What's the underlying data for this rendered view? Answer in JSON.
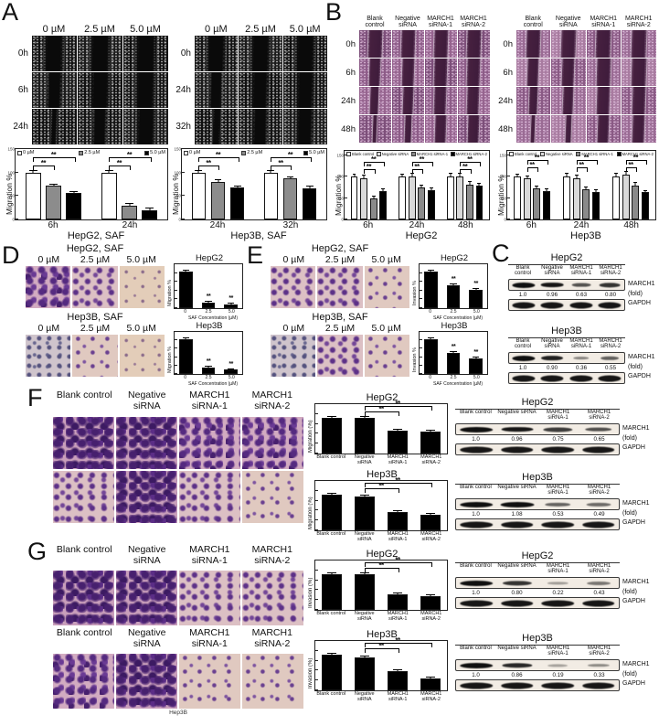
{
  "panels": {
    "A": {
      "label": "A",
      "grids": [
        {
          "cols": [
            "0 µM",
            "2.5 µM",
            "5.0 µM"
          ],
          "rows": [
            "0h",
            "6h",
            "24h"
          ]
        },
        {
          "cols": [
            "0 µM",
            "2.5 µM",
            "5.0 µM"
          ],
          "rows": [
            "0h",
            "24h",
            "32h"
          ]
        }
      ]
    },
    "B": {
      "label": "B",
      "col_labels": [
        "Blank control",
        "Negative siRNA",
        "MARCH1 siRNA-1",
        "MARCH1 siRNA-2"
      ],
      "grids": [
        {
          "rows": [
            "0h",
            "6h",
            "24h",
            "48h"
          ]
        },
        {
          "rows": [
            "0h",
            "6h",
            "24h",
            "48h"
          ]
        }
      ]
    },
    "C": {
      "label": "C",
      "blots": [
        {
          "title": "HepG2",
          "lanes": [
            "Blank control",
            "Negative siRNA",
            "MARCH1 siRNA-1",
            "MARCH1 siRNA-2"
          ],
          "folds": [
            "1.0",
            "0.96",
            "0.63",
            "0.80"
          ],
          "band_label": "MARCH1",
          "fold_label": "(fold)",
          "loading_label": "GAPDH"
        },
        {
          "title": "Hep3B",
          "lanes": [
            "Blank control",
            "Negative siRNA",
            "MARCH1 siRNA-1",
            "MARCH1 siRNA-2"
          ],
          "folds": [
            "1.0",
            "0.90",
            "0.36",
            "0.55"
          ],
          "band_label": "MARCH1",
          "fold_label": "(fold)",
          "loading_label": "GAPDH"
        }
      ]
    },
    "D": {
      "label": "D",
      "sections": [
        {
          "title": "HepG2, SAF",
          "cols": [
            "0 µM",
            "2.5 µM",
            "5.0 µM"
          ]
        },
        {
          "title": "Hep3B, SAF",
          "cols": [
            "0 µM",
            "2.5 µM",
            "5.0 µM"
          ]
        }
      ]
    },
    "E": {
      "label": "E",
      "sections": [
        {
          "title": "HepG2, SAF",
          "cols": [
            "0 µM",
            "2.5 µM",
            "5.0 µM"
          ]
        },
        {
          "title": "Hep3B, SAF",
          "cols": [
            "0 µM",
            "2.5 µM",
            "5.0 µM"
          ]
        }
      ]
    },
    "F": {
      "label": "F",
      "col_labels": [
        "Blank control",
        "Negative siRNA",
        "MARCH1 siRNA-1",
        "MARCH1 siRNA-2"
      ],
      "blots": [
        {
          "title": "HepG2",
          "lanes": [
            "Blank control",
            "Negative siRNA",
            "MARCH1 siRNA-1",
            "MARCH1 siRNA-2"
          ],
          "folds": [
            "1.0",
            "0.96",
            "0.75",
            "0.65"
          ],
          "band_label": "MARCH1",
          "fold_label": "(fold)",
          "loading_label": "GAPDH"
        },
        {
          "title": "Hep3B",
          "lanes": [
            "Blank control",
            "Negative siRNA",
            "MARCH1 siRNA-1",
            "MARCH1 siRNA-2"
          ],
          "folds": [
            "1.0",
            "1.08",
            "0.53",
            "0.49"
          ],
          "band_label": "MARCH1",
          "fold_label": "(fold)",
          "loading_label": "GAPDH"
        }
      ]
    },
    "G": {
      "label": "G",
      "col_labels": [
        "Blank control",
        "Negative siRNA",
        "MARCH1 siRNA-1",
        "MARCH1 siRNA-2"
      ],
      "caption": "Hep3B",
      "blots": [
        {
          "title": "HepG2",
          "lanes": [
            "Blank control",
            "Negative siRNA",
            "MARCH1 siRNA-1",
            "MARCH1 siRNA-2"
          ],
          "folds": [
            "1.0",
            "0.80",
            "0.22",
            "0.43"
          ],
          "band_label": "MARCH1",
          "fold_label": "(fold)",
          "loading_label": "GAPDH"
        },
        {
          "title": "Hep3B",
          "lanes": [
            "Blank control",
            "Negative siRNA",
            "MARCH1 siRNA-1",
            "MARCH1 siRNA-2"
          ],
          "folds": [
            "1.0",
            "0.86",
            "0.19",
            "0.33"
          ],
          "band_label": "MARCH1",
          "fold_label": "(fold)",
          "loading_label": "GAPDH"
        }
      ]
    }
  },
  "chart_data": [
    {
      "id": "A1",
      "type": "bar",
      "categories": [
        "6h",
        "24h"
      ],
      "series": [
        {
          "name": "0 µM",
          "color": "#ffffff",
          "values": [
            100,
            100
          ],
          "errors": [
            3,
            4
          ]
        },
        {
          "name": "2.5 µM",
          "color": "#8c8c8c",
          "values": [
            72,
            30
          ],
          "errors": [
            3,
            4
          ]
        },
        {
          "name": "5.0 µM",
          "color": "#000000",
          "values": [
            57,
            20
          ],
          "errors": [
            2,
            3
          ]
        }
      ],
      "ylabel": "Migration %",
      "xlabel": "HepG2, SAF",
      "ylim": [
        0,
        150
      ],
      "yticks": [
        0,
        50,
        100,
        150
      ],
      "ytick_labels": true,
      "legend": true,
      "sig": [
        {
          "a": [
            0,
            0
          ],
          "b": [
            0,
            1
          ],
          "level": 0
        },
        {
          "a": [
            0,
            0
          ],
          "b": [
            0,
            2
          ],
          "level": 1
        },
        {
          "a": [
            1,
            0
          ],
          "b": [
            1,
            1
          ],
          "level": 0
        },
        {
          "a": [
            1,
            0
          ],
          "b": [
            1,
            2
          ],
          "level": 1
        }
      ],
      "sig_label": "**"
    },
    {
      "id": "A2",
      "type": "bar",
      "categories": [
        "24h",
        "32h"
      ],
      "series": [
        {
          "name": "0 µM",
          "color": "#ffffff",
          "values": [
            100,
            100
          ],
          "errors": [
            3,
            3
          ]
        },
        {
          "name": "2.5 µM",
          "color": "#8c8c8c",
          "values": [
            80,
            87
          ],
          "errors": [
            4,
            3
          ]
        },
        {
          "name": "5.0 µM",
          "color": "#000000",
          "values": [
            68,
            67
          ],
          "errors": [
            3,
            3
          ]
        }
      ],
      "ylabel": "Migration %",
      "xlabel": "Hep3B, SAF",
      "ylim": [
        0,
        150
      ],
      "yticks": [
        0,
        50,
        100,
        150
      ],
      "ytick_labels": true,
      "legend": true,
      "sig": [
        {
          "a": [
            0,
            0
          ],
          "b": [
            0,
            1
          ],
          "level": 0
        },
        {
          "a": [
            0,
            0
          ],
          "b": [
            0,
            2
          ],
          "level": 1
        },
        {
          "a": [
            1,
            0
          ],
          "b": [
            1,
            1
          ],
          "level": 0
        },
        {
          "a": [
            1,
            0
          ],
          "b": [
            1,
            2
          ],
          "level": 1
        }
      ],
      "sig_label": "**"
    },
    {
      "id": "B1",
      "type": "bar",
      "categories": [
        "6h",
        "24h",
        "48h"
      ],
      "series": [
        {
          "name": "Blank control",
          "color": "#ffffff",
          "values": [
            100,
            100,
            100
          ],
          "errors": [
            5,
            5,
            6
          ]
        },
        {
          "name": "Negative siRNA",
          "color": "#d9d9d9",
          "values": [
            97,
            100,
            100
          ],
          "errors": [
            5,
            6,
            6
          ]
        },
        {
          "name": "MARCH1 siRNA-1",
          "color": "#8a8a8a",
          "values": [
            50,
            75,
            82
          ],
          "errors": [
            4,
            5,
            5
          ]
        },
        {
          "name": "MARCH1 siRNA-2",
          "color": "#000000",
          "values": [
            67,
            68,
            78
          ],
          "errors": [
            4,
            5,
            5
          ]
        }
      ],
      "ylabel": "Migration %",
      "xlabel": "HepG2",
      "ylim": [
        0,
        160
      ],
      "yticks": [
        0,
        50,
        100,
        150
      ],
      "ytick_labels": true,
      "legend": true,
      "sig": [
        {
          "a": [
            0,
            1
          ],
          "b": [
            0,
            2
          ],
          "level": 0
        },
        {
          "a": [
            0,
            1
          ],
          "b": [
            0,
            3
          ],
          "level": 1
        },
        {
          "a": [
            1,
            1
          ],
          "b": [
            1,
            2
          ],
          "level": 0
        },
        {
          "a": [
            1,
            1
          ],
          "b": [
            1,
            3
          ],
          "level": 1
        },
        {
          "a": [
            2,
            1
          ],
          "b": [
            2,
            2
          ],
          "level": 0
        },
        {
          "a": [
            2,
            1
          ],
          "b": [
            2,
            3
          ],
          "level": 1
        }
      ],
      "sig_label": "**"
    },
    {
      "id": "B2",
      "type": "bar",
      "categories": [
        "6h",
        "24h",
        "48h"
      ],
      "series": [
        {
          "name": "Blank control",
          "color": "#ffffff",
          "values": [
            100,
            100,
            100
          ],
          "errors": [
            5,
            6,
            6
          ]
        },
        {
          "name": "Negative siRNA",
          "color": "#d9d9d9",
          "values": [
            95,
            97,
            105
          ],
          "errors": [
            5,
            6,
            5
          ]
        },
        {
          "name": "MARCH1 siRNA-1",
          "color": "#8a8a8a",
          "values": [
            72,
            70,
            80
          ],
          "errors": [
            4,
            4,
            5
          ]
        },
        {
          "name": "MARCH1 siRNA-2",
          "color": "#000000",
          "values": [
            67,
            65,
            63
          ],
          "errors": [
            4,
            4,
            4
          ]
        }
      ],
      "ylabel": "Migration %",
      "xlabel": "Hep3B",
      "ylim": [
        0,
        160
      ],
      "yticks": [
        0,
        50,
        100,
        150
      ],
      "ytick_labels": true,
      "legend": true,
      "sig": [
        {
          "a": [
            0,
            1
          ],
          "b": [
            0,
            2
          ],
          "level": 0
        },
        {
          "a": [
            0,
            1
          ],
          "b": [
            0,
            3
          ],
          "level": 1
        },
        {
          "a": [
            1,
            1
          ],
          "b": [
            1,
            2
          ],
          "level": 0
        },
        {
          "a": [
            1,
            1
          ],
          "b": [
            1,
            3
          ],
          "level": 1
        },
        {
          "a": [
            2,
            1
          ],
          "b": [
            2,
            2
          ],
          "level": 0
        },
        {
          "a": [
            2,
            1
          ],
          "b": [
            2,
            3
          ],
          "level": 1
        }
      ],
      "sig_label": "**"
    },
    {
      "id": "D1",
      "type": "bar",
      "title": "HepG2",
      "categories": [
        "0",
        "2.5",
        "5.0"
      ],
      "series": [
        {
          "name": "",
          "color": "#000000",
          "values": [
            100,
            15,
            10
          ],
          "errors": [
            3,
            2,
            2
          ]
        }
      ],
      "ylabel": "Migration %",
      "xlabel": "SAF Concentration (µM)",
      "ylim": [
        0,
        120
      ],
      "stars": [
        1,
        2
      ]
    },
    {
      "id": "D2",
      "type": "bar",
      "title": "Hep3B",
      "categories": [
        "0",
        "2.5",
        "5.0"
      ],
      "series": [
        {
          "name": "",
          "color": "#000000",
          "values": [
            100,
            18,
            12
          ],
          "errors": [
            3,
            2,
            2
          ]
        }
      ],
      "ylabel": "Migration %",
      "xlabel": "SAF Concentration (µM)",
      "ylim": [
        0,
        120
      ],
      "stars": [
        1,
        2
      ]
    },
    {
      "id": "E1",
      "type": "bar",
      "title": "HepG2",
      "categories": [
        "0",
        "2.5",
        "5.0"
      ],
      "series": [
        {
          "name": "",
          "color": "#000000",
          "values": [
            100,
            62,
            50
          ],
          "errors": [
            3,
            3,
            3
          ]
        }
      ],
      "ylabel": "Invasion %",
      "xlabel": "SAF Concentration (µM)",
      "ylim": [
        0,
        120
      ],
      "stars": [
        1,
        2
      ]
    },
    {
      "id": "E2",
      "type": "bar",
      "title": "Hep3B",
      "categories": [
        "0",
        "2.5",
        "5.0"
      ],
      "series": [
        {
          "name": "",
          "color": "#000000",
          "values": [
            100,
            60,
            45
          ],
          "errors": [
            3,
            3,
            3
          ]
        }
      ],
      "ylabel": "Invasion %",
      "xlabel": "SAF Concentration (µM)",
      "ylim": [
        0,
        120
      ],
      "stars": [
        1,
        2
      ]
    },
    {
      "id": "F1",
      "type": "bar",
      "title": "HepG2",
      "categories": [
        "Blank control",
        "Negative siRNA",
        "MARCH1 siRNA-1",
        "MARCH1 siRNA-2"
      ],
      "series": [
        {
          "name": "",
          "color": "#000000",
          "values": [
            100,
            100,
            65,
            62
          ],
          "errors": [
            4,
            4,
            3,
            3
          ]
        }
      ],
      "ylabel": "Migration (%)",
      "ylim": [
        0,
        140
      ],
      "sig": [
        {
          "a": [
            1,
            0
          ],
          "b": [
            2,
            0
          ],
          "level": 0
        },
        {
          "a": [
            1,
            0
          ],
          "b": [
            3,
            0
          ],
          "level": 1
        }
      ],
      "sig_label": "**"
    },
    {
      "id": "F2",
      "type": "bar",
      "title": "Hep3B",
      "categories": [
        "Blank control",
        "Negative siRNA",
        "MARCH1 siRNA-1",
        "MARCH1 siRNA-2"
      ],
      "series": [
        {
          "name": "",
          "color": "#000000",
          "values": [
            100,
            95,
            52,
            45
          ],
          "errors": [
            4,
            4,
            3,
            3
          ]
        }
      ],
      "ylabel": "Migration (%)",
      "ylim": [
        0,
        140
      ],
      "sig": [
        {
          "a": [
            1,
            0
          ],
          "b": [
            2,
            0
          ],
          "level": 0
        },
        {
          "a": [
            1,
            0
          ],
          "b": [
            3,
            0
          ],
          "level": 1
        }
      ],
      "sig_label": "**"
    },
    {
      "id": "G1",
      "type": "bar",
      "title": "HepG2",
      "categories": [
        "Blank control",
        "Negative siRNA",
        "MARCH1 siRNA-1",
        "MARCH1 siRNA-2"
      ],
      "series": [
        {
          "name": "",
          "color": "#000000",
          "values": [
            100,
            100,
            45,
            38
          ],
          "errors": [
            4,
            4,
            3,
            3
          ]
        }
      ],
      "ylabel": "Invasion (%)",
      "ylim": [
        0,
        140
      ],
      "sig": [
        {
          "a": [
            1,
            0
          ],
          "b": [
            2,
            0
          ],
          "level": 0
        },
        {
          "a": [
            1,
            0
          ],
          "b": [
            3,
            0
          ],
          "level": 1
        }
      ],
      "sig_label": "**"
    },
    {
      "id": "G2",
      "type": "bar",
      "title": "Hep3B",
      "categories": [
        "Blank control",
        "Negative siRNA",
        "MARCH1 siRNA-1",
        "MARCH1 siRNA-2"
      ],
      "series": [
        {
          "name": "",
          "color": "#000000",
          "values": [
            100,
            93,
            55,
            33
          ],
          "errors": [
            4,
            4,
            3,
            3
          ]
        }
      ],
      "ylabel": "Invasion (%)",
      "ylim": [
        0,
        140
      ],
      "sig": [
        {
          "a": [
            1,
            0
          ],
          "b": [
            2,
            0
          ],
          "level": 0
        },
        {
          "a": [
            1,
            0
          ],
          "b": [
            3,
            0
          ],
          "level": 1
        }
      ],
      "sig_label": "**"
    }
  ]
}
